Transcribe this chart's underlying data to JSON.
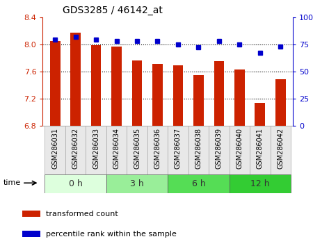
{
  "title": "GDS3285 / 46142_at",
  "samples": [
    "GSM286031",
    "GSM286032",
    "GSM286033",
    "GSM286034",
    "GSM286035",
    "GSM286036",
    "GSM286037",
    "GSM286038",
    "GSM286039",
    "GSM286040",
    "GSM286041",
    "GSM286042"
  ],
  "bar_values": [
    8.05,
    8.17,
    7.99,
    7.97,
    7.76,
    7.71,
    7.69,
    7.55,
    7.75,
    7.63,
    7.13,
    7.48
  ],
  "percentile_values": [
    79,
    82,
    79,
    78,
    78,
    78,
    75,
    72,
    78,
    75,
    67,
    73
  ],
  "bar_color": "#cc2200",
  "percentile_color": "#0000cc",
  "ylim_left": [
    6.8,
    8.4
  ],
  "ylim_right": [
    0,
    100
  ],
  "yticks_left": [
    6.8,
    7.2,
    7.6,
    8.0,
    8.4
  ],
  "yticks_right": [
    0,
    25,
    50,
    75,
    100
  ],
  "gridlines": [
    7.2,
    7.6,
    8.0
  ],
  "groups": [
    {
      "label": "0 h",
      "start": 0,
      "end": 3,
      "color": "#ddffdd"
    },
    {
      "label": "3 h",
      "start": 3,
      "end": 6,
      "color": "#99ee99"
    },
    {
      "label": "6 h",
      "start": 6,
      "end": 9,
      "color": "#55dd55"
    },
    {
      "label": "12 h",
      "start": 9,
      "end": 12,
      "color": "#33cc33"
    }
  ],
  "time_label": "time",
  "legend_bar_label": "transformed count",
  "legend_pct_label": "percentile rank within the sample",
  "bar_color_legend": "#cc2200",
  "pct_color_legend": "#0000cc",
  "tick_label_color_left": "#cc2200",
  "tick_label_color_right": "#0000cc",
  "bar_width": 0.5,
  "title_fontsize": 10,
  "tick_fontsize": 8,
  "xtick_fontsize": 7,
  "legend_fontsize": 8
}
